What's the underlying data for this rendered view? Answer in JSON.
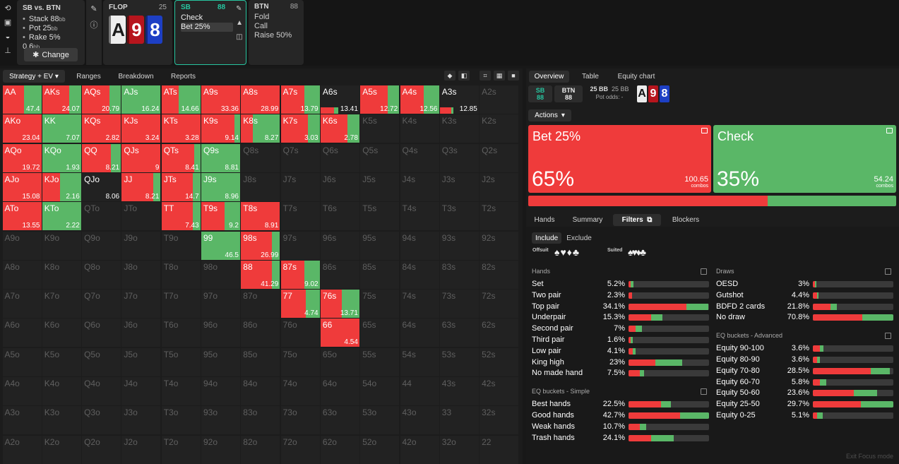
{
  "sidebar_icons": [
    "history-icon",
    "save-icon",
    "gamepad-icon",
    "align-icon"
  ],
  "info": {
    "title": "SB vs. BTN",
    "stack": "Stack 88",
    "stack_unit": "bb",
    "pot": "Pot 25",
    "pot_unit": "bb",
    "rake": "Rake 5% 0.6",
    "rake_unit": "bb",
    "change_label": "Change"
  },
  "flop": {
    "label": "FLOP",
    "count": "25",
    "cards": [
      {
        "rank": "A",
        "suit": "spade"
      },
      {
        "rank": "9",
        "suit": "heart"
      },
      {
        "rank": "8",
        "suit": "diamond"
      }
    ]
  },
  "sb_node": {
    "label": "SB",
    "count": "88",
    "actions": [
      "Check",
      "Bet 25%"
    ],
    "selected": "Bet 25%"
  },
  "btn_node": {
    "label": "BTN",
    "count": "88",
    "actions": [
      "Fold",
      "Call",
      "Raise 50%"
    ]
  },
  "left_tabs": [
    "Strategy + EV",
    "Ranges",
    "Breakdown",
    "Reports"
  ],
  "grid": [
    [
      "AA",
      "47.4",
      0.55,
      0.45
    ],
    [
      "AKs",
      "24.07",
      0.7,
      0.3
    ],
    [
      "AQs",
      "20.79",
      0.7,
      0.3
    ],
    [
      "AJs",
      "16.24",
      0.0,
      1.0
    ],
    [
      "ATs",
      "14.66",
      0.45,
      0.55
    ],
    [
      "A9s",
      "33.36",
      1.0,
      0.0
    ],
    [
      "A8s",
      "28.99",
      1.0,
      0.0
    ],
    [
      "A7s",
      "13.79",
      0.6,
      0.4
    ],
    [
      "A6s",
      "13.41",
      0.35,
      0.1
    ],
    [
      "A5s",
      "12.72",
      0.7,
      0.3
    ],
    [
      "A4s",
      "12.56",
      0.6,
      0.4
    ],
    [
      "A3s",
      "12.85",
      0.3,
      0.05
    ],
    [
      "A2s",
      "",
      0,
      0
    ],
    [
      "AKo",
      "23.04",
      1.0,
      0.0
    ],
    [
      "KK",
      "7.07",
      0.0,
      1.0
    ],
    [
      "KQs",
      "2.82",
      1.0,
      0.0
    ],
    [
      "KJs",
      "3.24",
      1.0,
      0.0
    ],
    [
      "KTs",
      "3.28",
      1.0,
      0.0
    ],
    [
      "K9s",
      "9.14",
      0.85,
      0.15
    ],
    [
      "K8s",
      "8.27",
      0.3,
      0.7
    ],
    [
      "K7s",
      "3.03",
      0.7,
      0.3
    ],
    [
      "K6s",
      "2.78",
      0.7,
      0.3
    ],
    [
      "K5s",
      "",
      0,
      0
    ],
    [
      "K4s",
      "",
      0,
      0
    ],
    [
      "K3s",
      "",
      0,
      0
    ],
    [
      "K2s",
      "",
      0,
      0
    ],
    [
      "AQo",
      "19.72",
      1.0,
      0.0
    ],
    [
      "KQo",
      "1.93",
      0.0,
      1.0
    ],
    [
      "QQ",
      "8.21",
      0.75,
      0.25
    ],
    [
      "QJs",
      "9",
      1.0,
      0.0
    ],
    [
      "QTs",
      "8.41",
      0.85,
      0.15
    ],
    [
      "Q9s",
      "8.81",
      0.0,
      1.0
    ],
    [
      "Q8s",
      "",
      0,
      0
    ],
    [
      "Q7s",
      "",
      0,
      0
    ],
    [
      "Q6s",
      "",
      0,
      0
    ],
    [
      "Q5s",
      "",
      0,
      0
    ],
    [
      "Q4s",
      "",
      0,
      0
    ],
    [
      "Q3s",
      "",
      0,
      0
    ],
    [
      "Q2s",
      "",
      0,
      0
    ],
    [
      "AJo",
      "15.08",
      1.0,
      0.0
    ],
    [
      "KJo",
      "2.16",
      0.45,
      0.55
    ],
    [
      "QJo",
      "8.06",
      0,
      0
    ],
    [
      "JJ",
      "8.21",
      0.82,
      0.18
    ],
    [
      "JTs",
      "14.7",
      0.8,
      0.2
    ],
    [
      "J9s",
      "8.96",
      0.0,
      1.0
    ],
    [
      "J8s",
      "",
      0,
      0
    ],
    [
      "J7s",
      "",
      0,
      0
    ],
    [
      "J6s",
      "",
      0,
      0
    ],
    [
      "J5s",
      "",
      0,
      0
    ],
    [
      "J4s",
      "",
      0,
      0
    ],
    [
      "J3s",
      "",
      0,
      0
    ],
    [
      "J2s",
      "",
      0,
      0
    ],
    [
      "ATo",
      "13.55",
      1.0,
      0.0
    ],
    [
      "KTo",
      "2.22",
      0.0,
      1.0
    ],
    [
      "QTo",
      "",
      0,
      0
    ],
    [
      "JTo",
      "",
      0,
      0
    ],
    [
      "TT",
      "7.43",
      0.8,
      0.2
    ],
    [
      "T9s",
      "9.2",
      0.6,
      0.4
    ],
    [
      "T8s",
      "8.91",
      1.0,
      0.0
    ],
    [
      "T7s",
      "",
      0,
      0
    ],
    [
      "T6s",
      "",
      0,
      0
    ],
    [
      "T5s",
      "",
      0,
      0
    ],
    [
      "T4s",
      "",
      0,
      0
    ],
    [
      "T3s",
      "",
      0,
      0
    ],
    [
      "T2s",
      "",
      0,
      0
    ],
    [
      "A9o",
      "",
      0,
      0
    ],
    [
      "K9o",
      "",
      0,
      0
    ],
    [
      "Q9o",
      "",
      0,
      0
    ],
    [
      "J9o",
      "",
      0,
      0
    ],
    [
      "T9o",
      "",
      0,
      0
    ],
    [
      "99",
      "46.5",
      0.0,
      1.0
    ],
    [
      "98s",
      "26.99",
      0.8,
      0.2
    ],
    [
      "97s",
      "",
      0,
      0
    ],
    [
      "96s",
      "",
      0,
      0
    ],
    [
      "95s",
      "",
      0,
      0
    ],
    [
      "94s",
      "",
      0,
      0
    ],
    [
      "93s",
      "",
      0,
      0
    ],
    [
      "92s",
      "",
      0,
      0
    ],
    [
      "A8o",
      "",
      0,
      0
    ],
    [
      "K8o",
      "",
      0,
      0
    ],
    [
      "Q8o",
      "",
      0,
      0
    ],
    [
      "J8o",
      "",
      0,
      0
    ],
    [
      "T8o",
      "",
      0,
      0
    ],
    [
      "98o",
      "",
      0,
      0
    ],
    [
      "88",
      "41.29",
      0.8,
      0.2
    ],
    [
      "87s",
      "9.02",
      0.6,
      0.4
    ],
    [
      "86s",
      "",
      0,
      0
    ],
    [
      "85s",
      "",
      0,
      0
    ],
    [
      "84s",
      "",
      0,
      0
    ],
    [
      "83s",
      "",
      0,
      0
    ],
    [
      "82s",
      "",
      0,
      0
    ],
    [
      "A7o",
      "",
      0,
      0
    ],
    [
      "K7o",
      "",
      0,
      0
    ],
    [
      "Q7o",
      "",
      0,
      0
    ],
    [
      "J7o",
      "",
      0,
      0
    ],
    [
      "T7o",
      "",
      0,
      0
    ],
    [
      "97o",
      "",
      0,
      0
    ],
    [
      "87o",
      "",
      0,
      0
    ],
    [
      "77",
      "4.74",
      0.65,
      0.35
    ],
    [
      "76s",
      "13.71",
      0.55,
      0.45
    ],
    [
      "75s",
      "",
      0,
      0
    ],
    [
      "74s",
      "",
      0,
      0
    ],
    [
      "73s",
      "",
      0,
      0
    ],
    [
      "72s",
      "",
      0,
      0
    ],
    [
      "A6o",
      "",
      0,
      0
    ],
    [
      "K6o",
      "",
      0,
      0
    ],
    [
      "Q6o",
      "",
      0,
      0
    ],
    [
      "J6o",
      "",
      0,
      0
    ],
    [
      "T6o",
      "",
      0,
      0
    ],
    [
      "96o",
      "",
      0,
      0
    ],
    [
      "86o",
      "",
      0,
      0
    ],
    [
      "76o",
      "",
      0,
      0
    ],
    [
      "66",
      "4.54",
      1.0,
      0.0
    ],
    [
      "65s",
      "",
      0,
      0
    ],
    [
      "64s",
      "",
      0,
      0
    ],
    [
      "63s",
      "",
      0,
      0
    ],
    [
      "62s",
      "",
      0,
      0
    ],
    [
      "A5o",
      "",
      0,
      0
    ],
    [
      "K5o",
      "",
      0,
      0
    ],
    [
      "Q5o",
      "",
      0,
      0
    ],
    [
      "J5o",
      "",
      0,
      0
    ],
    [
      "T5o",
      "",
      0,
      0
    ],
    [
      "95o",
      "",
      0,
      0
    ],
    [
      "85o",
      "",
      0,
      0
    ],
    [
      "75o",
      "",
      0,
      0
    ],
    [
      "65o",
      "",
      0,
      0
    ],
    [
      "55s",
      "",
      0,
      0
    ],
    [
      "54s",
      "",
      0,
      0
    ],
    [
      "53s",
      "",
      0,
      0
    ],
    [
      "52s",
      "",
      0,
      0
    ],
    [
      "A4o",
      "",
      0,
      0
    ],
    [
      "K4o",
      "",
      0,
      0
    ],
    [
      "Q4o",
      "",
      0,
      0
    ],
    [
      "J4o",
      "",
      0,
      0
    ],
    [
      "T4o",
      "",
      0,
      0
    ],
    [
      "94o",
      "",
      0,
      0
    ],
    [
      "84o",
      "",
      0,
      0
    ],
    [
      "74o",
      "",
      0,
      0
    ],
    [
      "64o",
      "",
      0,
      0
    ],
    [
      "54o",
      "",
      0,
      0
    ],
    [
      "44",
      "",
      0,
      0
    ],
    [
      "43s",
      "",
      0,
      0
    ],
    [
      "42s",
      "",
      0,
      0
    ],
    [
      "A3o",
      "",
      0,
      0
    ],
    [
      "K3o",
      "",
      0,
      0
    ],
    [
      "Q3o",
      "",
      0,
      0
    ],
    [
      "J3o",
      "",
      0,
      0
    ],
    [
      "T3o",
      "",
      0,
      0
    ],
    [
      "93o",
      "",
      0,
      0
    ],
    [
      "83o",
      "",
      0,
      0
    ],
    [
      "73o",
      "",
      0,
      0
    ],
    [
      "63o",
      "",
      0,
      0
    ],
    [
      "53o",
      "",
      0,
      0
    ],
    [
      "43o",
      "",
      0,
      0
    ],
    [
      "33",
      "",
      0,
      0
    ],
    [
      "32s",
      "",
      0,
      0
    ],
    [
      "A2o",
      "",
      0,
      0
    ],
    [
      "K2o",
      "",
      0,
      0
    ],
    [
      "Q2o",
      "",
      0,
      0
    ],
    [
      "J2o",
      "",
      0,
      0
    ],
    [
      "T2o",
      "",
      0,
      0
    ],
    [
      "92o",
      "",
      0,
      0
    ],
    [
      "82o",
      "",
      0,
      0
    ],
    [
      "72o",
      "",
      0,
      0
    ],
    [
      "62o",
      "",
      0,
      0
    ],
    [
      "52o",
      "",
      0,
      0
    ],
    [
      "42o",
      "",
      0,
      0
    ],
    [
      "32o",
      "",
      0,
      0
    ],
    [
      "22",
      "",
      0,
      0
    ]
  ],
  "right_tabs": [
    "Overview",
    "Table",
    "Equity chart"
  ],
  "spot": {
    "sb": "SB",
    "sb_stack": "88",
    "btn": "BTN",
    "btn_stack": "88",
    "pot_bb": "25 BB",
    "pot_bb2": "25 BB",
    "pot_odds": "Pot odds: -"
  },
  "actions_label": "Actions",
  "action_cards": [
    {
      "name": "Bet 25%",
      "pct": "65%",
      "combos": "100.65",
      "combos_unit": "combos",
      "freq": 65,
      "color": "#ef3b3b"
    },
    {
      "name": "Check",
      "pct": "35%",
      "combos": "54.24",
      "combos_unit": "combos",
      "freq": 35,
      "color": "#5ab767"
    }
  ],
  "sub_tabs": [
    "Hands",
    "Summary",
    "Filters",
    "Blockers"
  ],
  "filter_modes": [
    "Include",
    "Exclude"
  ],
  "offsuit_label": "Offsuit",
  "suited_label": "Suited",
  "offsuit_symbols": "♠♥♦♣",
  "suited_symbols": "♠♥♦♣",
  "sections_left": [
    {
      "title": "Hands",
      "rows": [
        [
          "Set",
          "5.2%",
          3,
          3
        ],
        [
          "Two pair",
          "2.3%",
          4,
          0
        ],
        [
          "Top pair",
          "34.1%",
          72,
          27
        ],
        [
          "Underpair",
          "15.3%",
          28,
          14
        ],
        [
          "Second pair",
          "7%",
          9,
          8
        ],
        [
          "Third pair",
          "1.6%",
          3,
          2
        ],
        [
          "Low pair",
          "4.1%",
          5,
          4
        ],
        [
          "King high",
          "23%",
          33,
          34
        ],
        [
          "No made hand",
          "7.5%",
          14,
          5
        ]
      ]
    },
    {
      "title": "EQ buckets - Simple",
      "rows": [
        [
          "Best hands",
          "22.5%",
          40,
          13
        ],
        [
          "Good hands",
          "42.7%",
          64,
          36
        ],
        [
          "Weak hands",
          "10.7%",
          14,
          8
        ],
        [
          "Trash hands",
          "24.1%",
          28,
          28
        ]
      ]
    }
  ],
  "sections_right": [
    {
      "title": "Draws",
      "rows": [
        [
          "OESD",
          "3%",
          3,
          1
        ],
        [
          "Gutshot",
          "4.4%",
          5,
          2
        ],
        [
          "BDFD 2 cards",
          "21.8%",
          22,
          8
        ],
        [
          "No draw",
          "70.8%",
          61,
          39
        ]
      ]
    },
    {
      "title": "EQ buckets - Advanced",
      "rows": [
        [
          "Equity 90-100",
          "3.6%",
          9,
          4
        ],
        [
          "Equity 80-90",
          "3.6%",
          5,
          4
        ],
        [
          "Equity 70-80",
          "28.5%",
          72,
          24
        ],
        [
          "Equity 60-70",
          "5.8%",
          9,
          8
        ],
        [
          "Equity 50-60",
          "23.6%",
          51,
          29
        ],
        [
          "Equity 25-50",
          "29.7%",
          60,
          40
        ],
        [
          "Equity 0-25",
          "5.1%",
          5,
          7
        ]
      ]
    }
  ],
  "exit_label": "Exit Focus mode"
}
